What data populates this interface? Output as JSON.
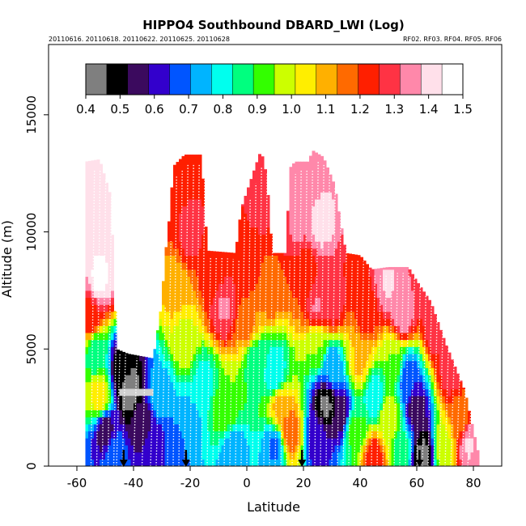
{
  "chart_data": {
    "type": "heatmap",
    "title": "HIPPO4 Southbound DBARD_LWI (Log)",
    "subtitle_left": "20110616. 20110618. 20110622. 20110625. 20110628",
    "subtitle_right": "RF02. RF03. RF04. RF05. RF06",
    "xlabel": "Latitude",
    "ylabel": "Altitude (m)",
    "xlim": [
      -70,
      90
    ],
    "ylim": [
      0,
      18000
    ],
    "x_ticks": [
      -60,
      -40,
      -20,
      0,
      20,
      40,
      60,
      80
    ],
    "x_tick_labels": [
      "-60",
      "-40",
      "-20",
      "0",
      "20",
      "40",
      "60",
      "80"
    ],
    "y_ticks": [
      0,
      5000,
      10000,
      15000
    ],
    "y_tick_labels": [
      "0",
      "5000",
      "10000",
      "15000"
    ],
    "colorbar": {
      "min": 0.4,
      "max": 1.5,
      "ticks": [
        0.4,
        0.5,
        0.6,
        0.7,
        0.8,
        0.9,
        1.0,
        1.1,
        1.2,
        1.3,
        1.4,
        1.5
      ],
      "tick_labels": [
        "0.4",
        "0.5",
        "0.6",
        "0.7",
        "0.8",
        "0.9",
        "1.0",
        "1.1",
        "1.2",
        "1.3",
        "1.4",
        "1.5"
      ],
      "colors": [
        "#7f7f7f",
        "#000000",
        "#3b0a5e",
        "#3300cc",
        "#0055ff",
        "#00b4ff",
        "#00ffee",
        "#00ff7f",
        "#33ff00",
        "#ccff00",
        "#ffee00",
        "#ffb000",
        "#ff6a00",
        "#ff1f00",
        "#ff3344",
        "#ff88aa",
        "#ffe0ea",
        "#ffffff"
      ]
    },
    "envelope": [
      {
        "lat": -57,
        "top": 13000
      },
      {
        "lat": -52,
        "top": 13100
      },
      {
        "lat": -48,
        "top": 11500
      },
      {
        "lat": -46,
        "top": 5000
      },
      {
        "lat": -42,
        "top": 4800
      },
      {
        "lat": -33,
        "top": 4600
      },
      {
        "lat": -30,
        "top": 7000
      },
      {
        "lat": -29,
        "top": 8800
      },
      {
        "lat": -27,
        "top": 11000
      },
      {
        "lat": -26,
        "top": 12800
      },
      {
        "lat": -22,
        "top": 13300
      },
      {
        "lat": -16,
        "top": 13300
      },
      {
        "lat": -14,
        "top": 9200
      },
      {
        "lat": -4,
        "top": 9100
      },
      {
        "lat": -2,
        "top": 11000
      },
      {
        "lat": 3,
        "top": 12800
      },
      {
        "lat": 5,
        "top": 13500
      },
      {
        "lat": 7,
        "top": 12400
      },
      {
        "lat": 9,
        "top": 9100
      },
      {
        "lat": 14,
        "top": 9100
      },
      {
        "lat": 15,
        "top": 12700
      },
      {
        "lat": 17,
        "top": 13000
      },
      {
        "lat": 22,
        "top": 13000
      },
      {
        "lat": 23,
        "top": 13500
      },
      {
        "lat": 27,
        "top": 13200
      },
      {
        "lat": 31,
        "top": 12000
      },
      {
        "lat": 33,
        "top": 10500
      },
      {
        "lat": 35,
        "top": 9100
      },
      {
        "lat": 40,
        "top": 9000
      },
      {
        "lat": 44,
        "top": 8400
      },
      {
        "lat": 50,
        "top": 8500
      },
      {
        "lat": 57,
        "top": 8500
      },
      {
        "lat": 60,
        "top": 7900
      },
      {
        "lat": 65,
        "top": 7000
      },
      {
        "lat": 70,
        "top": 5300
      },
      {
        "lat": 77,
        "top": 3200
      },
      {
        "lat": 82,
        "top": 400
      }
    ],
    "field_points": [
      {
        "lat": -54,
        "alt": 11000,
        "v": 1.42
      },
      {
        "lat": -52,
        "alt": 8000,
        "v": 1.45
      },
      {
        "lat": -55,
        "alt": 6500,
        "v": 1.25
      },
      {
        "lat": -53,
        "alt": 4800,
        "v": 0.85
      },
      {
        "lat": -52,
        "alt": 3000,
        "v": 1.05
      },
      {
        "lat": -50,
        "alt": 1500,
        "v": 0.55
      },
      {
        "lat": -47,
        "alt": 400,
        "v": 0.7
      },
      {
        "lat": -44,
        "alt": 4200,
        "v": 0.48
      },
      {
        "lat": -41,
        "alt": 3200,
        "v": 0.42
      },
      {
        "lat": -37,
        "alt": 2000,
        "v": 0.55
      },
      {
        "lat": -33,
        "alt": 1000,
        "v": 0.6
      },
      {
        "lat": -31,
        "alt": 3000,
        "v": 0.75
      },
      {
        "lat": -24,
        "alt": 12000,
        "v": 1.25
      },
      {
        "lat": -20,
        "alt": 10000,
        "v": 1.27
      },
      {
        "lat": -25,
        "alt": 7500,
        "v": 1.1
      },
      {
        "lat": -22,
        "alt": 5500,
        "v": 1.0
      },
      {
        "lat": -15,
        "alt": 3500,
        "v": 0.8
      },
      {
        "lat": -8,
        "alt": 2500,
        "v": 0.95
      },
      {
        "lat": -20,
        "alt": 1800,
        "v": 0.75
      },
      {
        "lat": -25,
        "alt": 600,
        "v": 0.68
      },
      {
        "lat": -5,
        "alt": 500,
        "v": 0.72
      },
      {
        "lat": -12,
        "alt": 8200,
        "v": 1.22
      },
      {
        "lat": -8,
        "alt": 6800,
        "v": 1.32
      },
      {
        "lat": 0,
        "alt": 6000,
        "v": 1.15
      },
      {
        "lat": 3,
        "alt": 4500,
        "v": 0.85
      },
      {
        "lat": 10,
        "alt": 4000,
        "v": 0.78
      },
      {
        "lat": 5,
        "alt": 11500,
        "v": 1.28
      },
      {
        "lat": 0,
        "alt": 8500,
        "v": 1.23
      },
      {
        "lat": 8,
        "alt": 7700,
        "v": 1.18
      },
      {
        "lat": 12,
        "alt": 2500,
        "v": 1.1
      },
      {
        "lat": 15,
        "alt": 1500,
        "v": 1.18
      },
      {
        "lat": 10,
        "alt": 800,
        "v": 0.7
      },
      {
        "lat": 22,
        "alt": 12000,
        "v": 1.35
      },
      {
        "lat": 26,
        "alt": 10500,
        "v": 1.4
      },
      {
        "lat": 18,
        "alt": 10200,
        "v": 1.32
      },
      {
        "lat": 20,
        "alt": 8200,
        "v": 1.2
      },
      {
        "lat": 25,
        "alt": 6800,
        "v": 1.32
      },
      {
        "lat": 30,
        "alt": 7000,
        "v": 1.3
      },
      {
        "lat": 25,
        "alt": 5200,
        "v": 0.95
      },
      {
        "lat": 30,
        "alt": 4200,
        "v": 0.72
      },
      {
        "lat": 28,
        "alt": 2600,
        "v": 0.45
      },
      {
        "lat": 33,
        "alt": 2300,
        "v": 0.55
      },
      {
        "lat": 25,
        "alt": 1200,
        "v": 0.62
      },
      {
        "lat": 38,
        "alt": 1500,
        "v": 0.9
      },
      {
        "lat": 40,
        "alt": 4500,
        "v": 1.08
      },
      {
        "lat": 42,
        "alt": 6500,
        "v": 1.22
      },
      {
        "lat": 45,
        "alt": 3000,
        "v": 0.78
      },
      {
        "lat": 50,
        "alt": 7800,
        "v": 1.38
      },
      {
        "lat": 55,
        "alt": 6500,
        "v": 1.35
      },
      {
        "lat": 52,
        "alt": 4500,
        "v": 0.95
      },
      {
        "lat": 50,
        "alt": 2000,
        "v": 1.0
      },
      {
        "lat": 57,
        "alt": 3800,
        "v": 0.65
      },
      {
        "lat": 60,
        "alt": 2300,
        "v": 0.55
      },
      {
        "lat": 62,
        "alt": 500,
        "v": 0.45
      },
      {
        "lat": 55,
        "alt": 800,
        "v": 0.85
      },
      {
        "lat": 67,
        "alt": 6000,
        "v": 1.3
      },
      {
        "lat": 72,
        "alt": 4000,
        "v": 1.28
      },
      {
        "lat": 75,
        "alt": 2000,
        "v": 1.15
      },
      {
        "lat": 78,
        "alt": 900,
        "v": 1.38
      },
      {
        "lat": 70,
        "alt": 800,
        "v": 1.0
      },
      {
        "lat": 45,
        "alt": 200,
        "v": 1.25
      }
    ],
    "white_patch": {
      "lat_min": -45,
      "lat_max": -33,
      "alt_min": 3000,
      "alt_max": 3300
    },
    "flight_track_lats": [
      -58,
      -55,
      -53,
      -51,
      -49,
      -47,
      -46,
      -44,
      -40,
      -37,
      -34,
      -32,
      -30,
      -28,
      -26,
      -24,
      -22,
      -20,
      -18,
      -16,
      -14,
      -12,
      -10,
      -8,
      -6,
      -4,
      -2,
      0,
      2,
      4,
      6,
      8,
      10,
      12,
      14,
      16,
      18,
      20,
      22,
      24,
      26,
      28,
      30,
      32,
      34,
      36,
      38,
      40,
      42,
      44,
      46,
      48,
      50,
      52,
      54,
      56,
      58,
      60,
      62,
      64,
      66,
      68,
      70,
      72,
      74,
      76,
      78
    ],
    "arrow_lats": [
      -43.5,
      -21.5,
      19.5,
      61
    ]
  }
}
